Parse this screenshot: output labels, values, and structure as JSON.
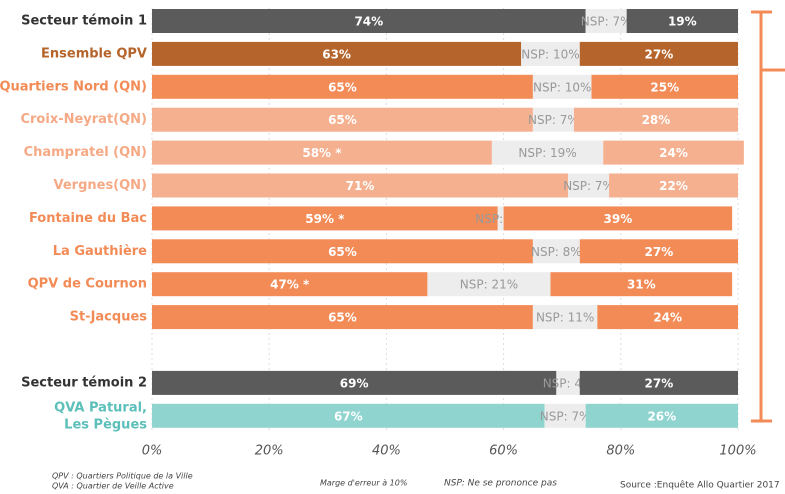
{
  "chart_data": {
    "type": "stacked_bar_horizontal",
    "categories": [
      "Secteur témoin 1",
      "Ensemble QPV",
      "Quartiers Nord (QN)",
      "Croix-Neyrat(QN)",
      "Champratel  (QN)",
      "Vergnes(QN)",
      "Fontaine du Bac",
      "La Gauthière",
      "QPV de Cournon",
      "St-Jacques",
      null,
      "Secteur témoin 2",
      [
        "QVA Patural,",
        "Les Pègues"
      ]
    ],
    "colors": [
      "#5b5b5b",
      "#b5652b",
      "#f38b57",
      "#f5b08f",
      "#f5b08f",
      "#f5b08f",
      "#f38b57",
      "#f38b57",
      "#f38b57",
      "#f38b57",
      null,
      "#5b5b5b",
      "#8fd4cf"
    ],
    "label_colors": [
      "#333333",
      "#b5652b",
      "#f38b57",
      "#f5a985",
      "#f5a985",
      "#f5a985",
      "#f38b57",
      "#f38b57",
      "#f38b57",
      "#f38b57",
      null,
      "#333333",
      "#5cbfba"
    ],
    "nsp_color": "#ededed",
    "series": [
      {
        "values": [
          74,
          63,
          65,
          65,
          58,
          71,
          59,
          65,
          47,
          65,
          null,
          69,
          67
        ],
        "value_labels": [
          "74%",
          "63%",
          "65%",
          "65%",
          "58% *",
          "71%",
          "59% *",
          "65%",
          "47% *",
          "65%",
          null,
          "69%",
          "67%"
        ]
      },
      {
        "values": [
          7,
          10,
          10,
          7,
          19,
          7,
          1,
          8,
          21,
          11,
          null,
          4,
          7
        ],
        "value_labels": [
          "NSP: 7%",
          "NSP: 10%",
          "NSP: 10%",
          "NSP: 7%",
          "NSP: 19%",
          "NSP: 7%",
          "NSP: 1%",
          "NSP: 8%",
          "NSP: 21%",
          "NSP: 11%",
          null,
          "NSP: 4%",
          "NSP: 7%"
        ]
      },
      {
        "values": [
          19,
          27,
          25,
          28,
          24,
          22,
          39,
          27,
          31,
          24,
          null,
          27,
          26
        ],
        "value_labels": [
          "19%",
          "27%",
          "25%",
          "28%",
          "24%",
          "22%",
          "39%",
          "27%",
          "31%",
          "24%",
          null,
          "27%",
          "26%"
        ]
      }
    ],
    "xlim": [
      0,
      100
    ],
    "xticks": [
      {
        "value": 0,
        "label": "0%"
      },
      {
        "value": 20,
        "label": "20%"
      },
      {
        "value": 40,
        "label": "40%"
      },
      {
        "value": 60,
        "label": "60%"
      },
      {
        "value": 80,
        "label": "80%"
      },
      {
        "value": 100,
        "label": "100%"
      }
    ],
    "grid": true,
    "notes": [
      "QPV : Quartiers Politique de la Ville",
      "QVA : Quartier de Veille Active",
      "Marge d'erreur à 10%",
      "NSP: Ne se prononce pas",
      "Source :Enquête  Allo Quartier 2017"
    ]
  }
}
